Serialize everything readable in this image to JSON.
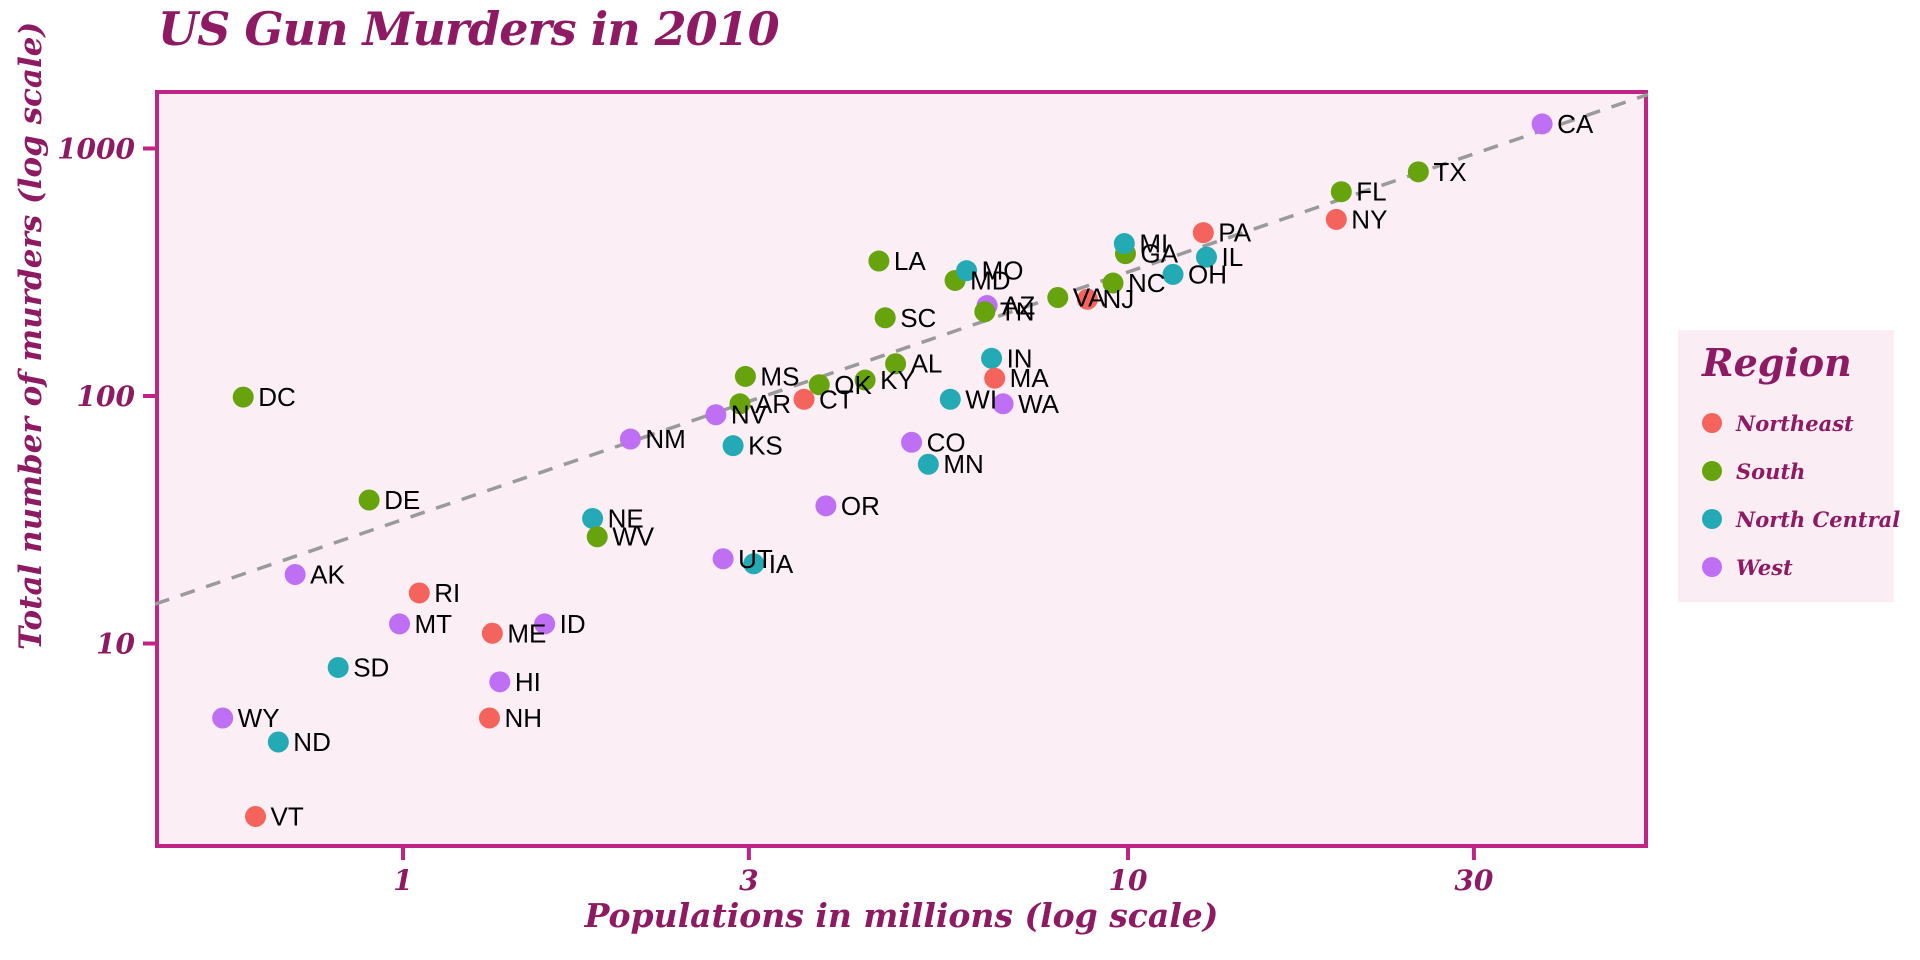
{
  "chart_data": {
    "type": "scatter",
    "title": "US Gun Murders in 2010",
    "xlabel": "Populations in millions (log scale)",
    "ylabel": "Total number of murders (log scale)",
    "x_scale": "log10",
    "y_scale": "log10",
    "x_ticks": [
      1,
      3,
      10,
      30
    ],
    "y_ticks": [
      10,
      100,
      1000
    ],
    "xlim": [
      0.455,
      52.1
    ],
    "ylim": [
      1.55,
      1740
    ],
    "grid": false,
    "legend": {
      "title": "Region",
      "position": "right",
      "entries": [
        {
          "label": "Northeast",
          "color": "#F4645C"
        },
        {
          "label": "South",
          "color": "#67A30D"
        },
        {
          "label": "North Central",
          "color": "#24AAB4"
        },
        {
          "label": "West",
          "color": "#BE6FF3"
        }
      ]
    },
    "trend_line": {
      "style": "dashed",
      "color": "#9A9A9A",
      "murders_per_million": 31.7
    },
    "points": [
      {
        "abbr": "AL",
        "region": "South",
        "population_millions": 4.78,
        "murders": 135
      },
      {
        "abbr": "AK",
        "region": "West",
        "population_millions": 0.71,
        "murders": 19
      },
      {
        "abbr": "AZ",
        "region": "West",
        "population_millions": 6.392,
        "murders": 232
      },
      {
        "abbr": "AR",
        "region": "South",
        "population_millions": 2.916,
        "murders": 93
      },
      {
        "abbr": "CA",
        "region": "West",
        "population_millions": 37.254,
        "murders": 1257
      },
      {
        "abbr": "CO",
        "region": "West",
        "population_millions": 5.029,
        "murders": 65
      },
      {
        "abbr": "CT",
        "region": "Northeast",
        "population_millions": 3.574,
        "murders": 97
      },
      {
        "abbr": "DE",
        "region": "South",
        "population_millions": 0.898,
        "murders": 38
      },
      {
        "abbr": "DC",
        "region": "South",
        "population_millions": 0.602,
        "murders": 99
      },
      {
        "abbr": "FL",
        "region": "South",
        "population_millions": 19.688,
        "murders": 669
      },
      {
        "abbr": "GA",
        "region": "South",
        "population_millions": 9.92,
        "murders": 376
      },
      {
        "abbr": "HI",
        "region": "West",
        "population_millions": 1.36,
        "murders": 7
      },
      {
        "abbr": "ID",
        "region": "West",
        "population_millions": 1.568,
        "murders": 12
      },
      {
        "abbr": "IL",
        "region": "North Central",
        "population_millions": 12.831,
        "murders": 364
      },
      {
        "abbr": "IN",
        "region": "North Central",
        "population_millions": 6.484,
        "murders": 142
      },
      {
        "abbr": "IA",
        "region": "North Central",
        "population_millions": 3.046,
        "murders": 21
      },
      {
        "abbr": "KS",
        "region": "North Central",
        "population_millions": 2.853,
        "murders": 63
      },
      {
        "abbr": "KY",
        "region": "South",
        "population_millions": 4.339,
        "murders": 116
      },
      {
        "abbr": "LA",
        "region": "South",
        "population_millions": 4.533,
        "murders": 351
      },
      {
        "abbr": "ME",
        "region": "Northeast",
        "population_millions": 1.328,
        "murders": 11
      },
      {
        "abbr": "MD",
        "region": "South",
        "population_millions": 5.774,
        "murders": 293
      },
      {
        "abbr": "MA",
        "region": "Northeast",
        "population_millions": 6.548,
        "murders": 118
      },
      {
        "abbr": "MI",
        "region": "North Central",
        "population_millions": 9.884,
        "murders": 413
      },
      {
        "abbr": "MN",
        "region": "North Central",
        "population_millions": 5.304,
        "murders": 53
      },
      {
        "abbr": "MS",
        "region": "South",
        "population_millions": 2.967,
        "murders": 120
      },
      {
        "abbr": "MO",
        "region": "North Central",
        "population_millions": 5.989,
        "murders": 321
      },
      {
        "abbr": "MT",
        "region": "West",
        "population_millions": 0.989,
        "murders": 12
      },
      {
        "abbr": "NE",
        "region": "North Central",
        "population_millions": 1.826,
        "murders": 32
      },
      {
        "abbr": "NV",
        "region": "West",
        "population_millions": 2.701,
        "murders": 84
      },
      {
        "abbr": "NH",
        "region": "Northeast",
        "population_millions": 1.316,
        "murders": 5
      },
      {
        "abbr": "NJ",
        "region": "Northeast",
        "population_millions": 8.792,
        "murders": 246
      },
      {
        "abbr": "NM",
        "region": "West",
        "population_millions": 2.059,
        "murders": 67
      },
      {
        "abbr": "NY",
        "region": "Northeast",
        "population_millions": 19.378,
        "murders": 517
      },
      {
        "abbr": "NC",
        "region": "South",
        "population_millions": 9.535,
        "murders": 286
      },
      {
        "abbr": "ND",
        "region": "North Central",
        "population_millions": 0.673,
        "murders": 4
      },
      {
        "abbr": "OH",
        "region": "North Central",
        "population_millions": 11.537,
        "murders": 310
      },
      {
        "abbr": "OK",
        "region": "South",
        "population_millions": 3.751,
        "murders": 111
      },
      {
        "abbr": "OR",
        "region": "West",
        "population_millions": 3.831,
        "murders": 36
      },
      {
        "abbr": "PA",
        "region": "Northeast",
        "population_millions": 12.702,
        "murders": 457
      },
      {
        "abbr": "RI",
        "region": "Northeast",
        "population_millions": 1.053,
        "murders": 16
      },
      {
        "abbr": "SC",
        "region": "South",
        "population_millions": 4.625,
        "murders": 207
      },
      {
        "abbr": "SD",
        "region": "North Central",
        "population_millions": 0.814,
        "murders": 8
      },
      {
        "abbr": "TN",
        "region": "South",
        "population_millions": 6.346,
        "murders": 219
      },
      {
        "abbr": "TX",
        "region": "South",
        "population_millions": 25.146,
        "murders": 805
      },
      {
        "abbr": "UT",
        "region": "West",
        "population_millions": 2.764,
        "murders": 22
      },
      {
        "abbr": "VT",
        "region": "Northeast",
        "population_millions": 0.626,
        "murders": 2
      },
      {
        "abbr": "VA",
        "region": "South",
        "population_millions": 8.001,
        "murders": 250
      },
      {
        "abbr": "WA",
        "region": "West",
        "population_millions": 6.725,
        "murders": 93
      },
      {
        "abbr": "WV",
        "region": "South",
        "population_millions": 1.853,
        "murders": 27
      },
      {
        "abbr": "WI",
        "region": "North Central",
        "population_millions": 5.687,
        "murders": 97
      },
      {
        "abbr": "WY",
        "region": "West",
        "population_millions": 0.564,
        "murders": 5
      }
    ]
  },
  "theme": {
    "accent_magenta": "#8D1A62",
    "panel_border": "#C02484",
    "panel_background": "#FBEEF5",
    "legend_background": "#FAEDF4",
    "page_background": "#FFFFFF",
    "label_color": "#000000",
    "trend_line_color": "#9A9A9A"
  }
}
